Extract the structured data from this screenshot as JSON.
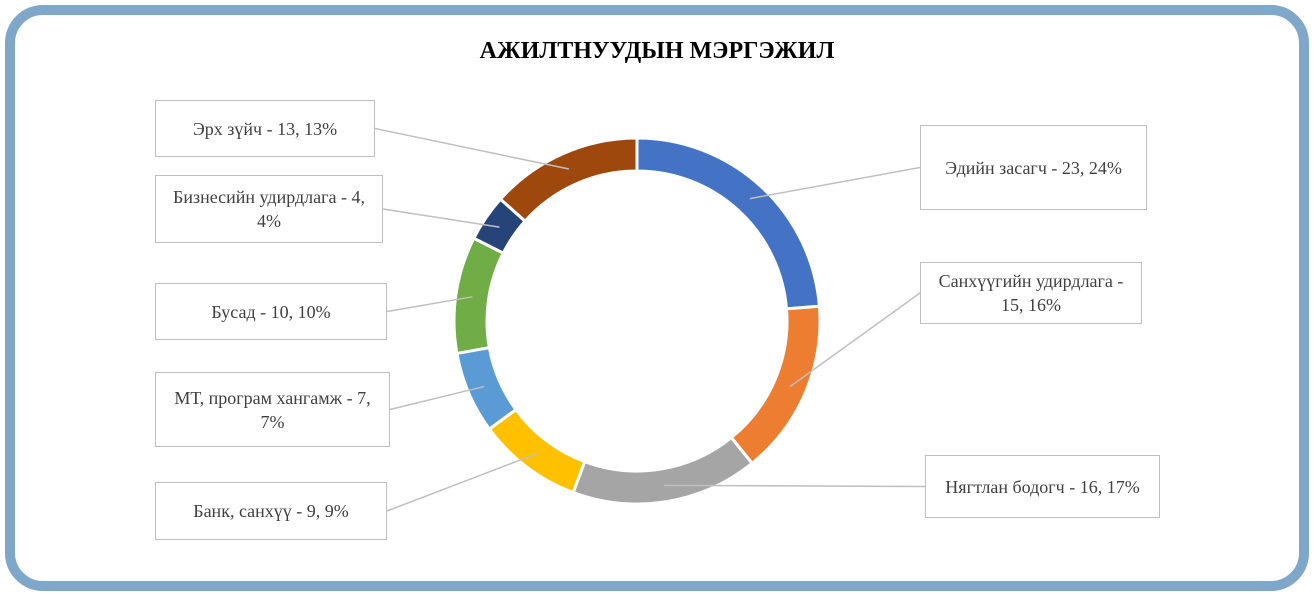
{
  "chart_data": {
    "type": "donut",
    "title": "АЖИЛТНУУДЫН МЭРГЭЖИЛ",
    "values": [
      23,
      15,
      16,
      9,
      7,
      10,
      4,
      13
    ],
    "value_labels": [
      "Эдийн засагч - 23, 24%",
      "Санхүүгийн удирдлага - 15, 16%",
      "Нягтлан бодогч - 16, 17%",
      "Банк, санхүү  - 9, 9%",
      "МТ, програм хангамж  - 7, 7%",
      "Бусад - 10, 10%",
      "Бизнесийн удирдлага - 4, 4%",
      "Эрх зүйч - 13, 13%"
    ],
    "colors": [
      "#4472c4",
      "#ed7d31",
      "#a5a5a5",
      "#ffc000",
      "#5b9bd5",
      "#70ad47",
      "#264478",
      "#9e480e"
    ]
  }
}
